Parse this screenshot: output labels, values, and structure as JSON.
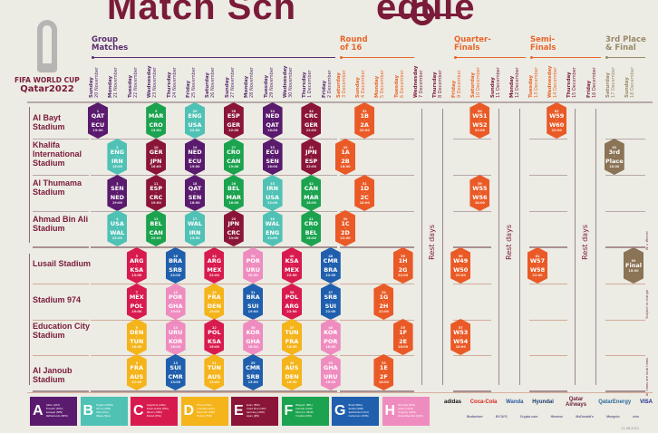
{
  "title_part1": "Match Sch",
  "title_part2": "edule",
  "logo": {
    "line1": "FIFA WORLD CUP",
    "line2": "Qatar2022"
  },
  "stages": [
    {
      "label1": "Group",
      "label2": "Matches",
      "color": "#5a2d6e"
    },
    {
      "label1": "Round",
      "label2": "of 16",
      "color": "#e8662a"
    },
    {
      "label1": "Quarter-",
      "label2": "Finals",
      "color": "#e8662a"
    },
    {
      "label1": "Semi-",
      "label2": "Finals",
      "color": "#e8662a"
    },
    {
      "label1": "3rd Place",
      "label2": "& Final",
      "color": "#9a8a6a"
    }
  ],
  "dates": [
    {
      "weekday": "Sunday",
      "date": "20 November",
      "color": "#5a2d6e"
    },
    {
      "weekday": "Monday",
      "date": "21 November",
      "color": "#5a2d6e"
    },
    {
      "weekday": "Tuesday",
      "date": "22 November",
      "color": "#5a2d6e"
    },
    {
      "weekday": "Wednesday",
      "date": "23 November",
      "color": "#5a2d6e"
    },
    {
      "weekday": "Thursday",
      "date": "24 November",
      "color": "#5a2d6e"
    },
    {
      "weekday": "Friday",
      "date": "25 November",
      "color": "#5a2d6e"
    },
    {
      "weekday": "Saturday",
      "date": "26 November",
      "color": "#5a2d6e"
    },
    {
      "weekday": "Sunday",
      "date": "27 November",
      "color": "#5a2d6e"
    },
    {
      "weekday": "Monday",
      "date": "28 November",
      "color": "#5a2d6e"
    },
    {
      "weekday": "Tuesday",
      "date": "29 November",
      "color": "#5a2d6e"
    },
    {
      "weekday": "Wednesday",
      "date": "30 November",
      "color": "#5a2d6e"
    },
    {
      "weekday": "Thursday",
      "date": "1 December",
      "color": "#5a2d6e"
    },
    {
      "weekday": "Friday",
      "date": "2 December",
      "color": "#5a2d6e"
    },
    {
      "weekday": "Saturday",
      "date": "3 December",
      "color": "#e8662a"
    },
    {
      "weekday": "Sunday",
      "date": "4 December",
      "color": "#e8662a"
    },
    {
      "weekday": "Monday",
      "date": "5 December",
      "color": "#e8662a"
    },
    {
      "weekday": "Tuesday",
      "date": "6 December",
      "color": "#e8662a"
    },
    {
      "weekday": "Wednesday",
      "date": "7 December",
      "color": "#7a1b3a"
    },
    {
      "weekday": "Thursday",
      "date": "8 December",
      "color": "#7a1b3a"
    },
    {
      "weekday": "Friday",
      "date": "9 December",
      "color": "#e8662a"
    },
    {
      "weekday": "Saturday",
      "date": "10 December",
      "color": "#e8662a"
    },
    {
      "weekday": "Sunday",
      "date": "11 December",
      "color": "#7a1b3a"
    },
    {
      "weekday": "Monday",
      "date": "12 December",
      "color": "#7a1b3a"
    },
    {
      "weekday": "Tuesday",
      "date": "13 December",
      "color": "#e8662a"
    },
    {
      "weekday": "Wednesday",
      "date": "14 December",
      "color": "#e8662a"
    },
    {
      "weekday": "Thursday",
      "date": "15 December",
      "color": "#7a1b3a"
    },
    {
      "weekday": "Friday",
      "date": "16 December",
      "color": "#7a1b3a"
    },
    {
      "weekday": "Saturday",
      "date": "17 December",
      "color": "#9a8a6a"
    },
    {
      "weekday": "Sunday",
      "date": "18 December",
      "color": "#9a8a6a"
    }
  ],
  "stadiums": [
    {
      "name": "Al Bayt Stadium"
    },
    {
      "name": "Khalifa International Stadium"
    },
    {
      "name": "Al Thumama Stadium"
    },
    {
      "name": "Ahmad Bin Ali Stadium"
    },
    {
      "name": "Lusail Stadium"
    },
    {
      "name": "Stadium 974"
    },
    {
      "name": "Education City Stadium"
    },
    {
      "name": "Al Janoub Stadium"
    }
  ],
  "rest_days_label": "Rest days",
  "group_colors": {
    "A": "#5a1a6e",
    "B": "#4fc2b5",
    "C": "#d81b4f",
    "D": "#f4b41a",
    "E": "#8a1538",
    "F": "#1ba34f",
    "G": "#1f5fae",
    "H": "#ef8cbf",
    "KO": "#ea5a26",
    "FIN": "#8b7355"
  },
  "matches": [
    {
      "num": "1",
      "stadium": 0,
      "day": 0,
      "home": "QAT",
      "away": "ECU",
      "time": "19:00",
      "group": "A"
    },
    {
      "num": "9",
      "stadium": 0,
      "day": 3,
      "home": "MAR",
      "away": "CRO",
      "time": "13:00",
      "group": "F"
    },
    {
      "num": "20",
      "stadium": 0,
      "day": 5,
      "home": "ENG",
      "away": "USA",
      "time": "22:00",
      "group": "B"
    },
    {
      "num": "28",
      "stadium": 0,
      "day": 7,
      "home": "ESP",
      "away": "GER",
      "time": "22:00",
      "group": "E"
    },
    {
      "num": "34",
      "stadium": 0,
      "day": 9,
      "home": "NED",
      "away": "QAT",
      "time": "18:00",
      "group": "A"
    },
    {
      "num": "44",
      "stadium": 0,
      "day": 11,
      "home": "CRC",
      "away": "GER",
      "time": "22:00",
      "group": "E"
    },
    {
      "num": "52",
      "stadium": 0,
      "day": 14,
      "home": "1B",
      "away": "2A",
      "time": "22:00",
      "group": "KO"
    },
    {
      "num": "60",
      "stadium": 0,
      "day": 20,
      "home": "W51",
      "away": "W52",
      "time": "22:00",
      "group": "KO"
    },
    {
      "num": "62",
      "stadium": 0,
      "day": 24,
      "home": "W59",
      "away": "W60",
      "time": "22:00",
      "group": "KO"
    },
    {
      "num": "2",
      "stadium": 1,
      "day": 1,
      "home": "ENG",
      "away": "IRN",
      "time": "16:00",
      "group": "B"
    },
    {
      "num": "10",
      "stadium": 1,
      "day": 3,
      "home": "GER",
      "away": "JPN",
      "time": "16:00",
      "group": "E"
    },
    {
      "num": "19",
      "stadium": 1,
      "day": 5,
      "home": "NED",
      "away": "ECU",
      "time": "19:00",
      "group": "A"
    },
    {
      "num": "27",
      "stadium": 1,
      "day": 7,
      "home": "CRO",
      "away": "CAN",
      "time": "19:00",
      "group": "F"
    },
    {
      "num": "33",
      "stadium": 1,
      "day": 9,
      "home": "ECU",
      "away": "SEN",
      "time": "18:00",
      "group": "A"
    },
    {
      "num": "43",
      "stadium": 1,
      "day": 11,
      "home": "JPN",
      "away": "ESP",
      "time": "22:00",
      "group": "E"
    },
    {
      "num": "49",
      "stadium": 1,
      "day": 13,
      "home": "1A",
      "away": "2B",
      "time": "18:00",
      "group": "KO"
    },
    {
      "num": "63",
      "stadium": 1,
      "day": 27,
      "home": "3rd",
      "away": "Place",
      "time": "18:00",
      "group": "FIN"
    },
    {
      "num": "3",
      "stadium": 2,
      "day": 1,
      "home": "SEN",
      "away": "NED",
      "time": "19:00",
      "group": "A"
    },
    {
      "num": "11",
      "stadium": 2,
      "day": 3,
      "home": "ESP",
      "away": "CRC",
      "time": "19:00",
      "group": "E"
    },
    {
      "num": "18",
      "stadium": 2,
      "day": 5,
      "home": "QAT",
      "away": "SEN",
      "time": "16:00",
      "group": "A"
    },
    {
      "num": "26",
      "stadium": 2,
      "day": 7,
      "home": "BEL",
      "away": "MAR",
      "time": "16:00",
      "group": "F"
    },
    {
      "num": "35",
      "stadium": 2,
      "day": 9,
      "home": "IRN",
      "away": "USA",
      "time": "22:00",
      "group": "B"
    },
    {
      "num": "42",
      "stadium": 2,
      "day": 11,
      "home": "CAN",
      "away": "MAR",
      "time": "18:00",
      "group": "F"
    },
    {
      "num": "51",
      "stadium": 2,
      "day": 14,
      "home": "1D",
      "away": "2C",
      "time": "18:00",
      "group": "KO"
    },
    {
      "num": "59",
      "stadium": 2,
      "day": 20,
      "home": "W55",
      "away": "W56",
      "time": "18:00",
      "group": "KO"
    },
    {
      "num": "4",
      "stadium": 3,
      "day": 1,
      "home": "USA",
      "away": "WAL",
      "time": "22:00",
      "group": "B"
    },
    {
      "num": "12",
      "stadium": 3,
      "day": 3,
      "home": "BEL",
      "away": "CAN",
      "time": "22:00",
      "group": "F"
    },
    {
      "num": "17",
      "stadium": 3,
      "day": 5,
      "home": "WAL",
      "away": "IRN",
      "time": "13:00",
      "group": "B"
    },
    {
      "num": "25",
      "stadium": 3,
      "day": 7,
      "home": "JPN",
      "away": "CRC",
      "time": "13:00",
      "group": "E"
    },
    {
      "num": "36",
      "stadium": 3,
      "day": 9,
      "home": "WAL",
      "away": "ENG",
      "time": "22:00",
      "group": "B"
    },
    {
      "num": "41",
      "stadium": 3,
      "day": 11,
      "home": "CRO",
      "away": "BEL",
      "time": "18:00",
      "group": "F"
    },
    {
      "num": "50",
      "stadium": 3,
      "day": 13,
      "home": "1C",
      "away": "2D",
      "time": "22:00",
      "group": "KO"
    },
    {
      "num": "5",
      "stadium": 4,
      "day": 2,
      "home": "ARG",
      "away": "KSA",
      "time": "13:00",
      "group": "C"
    },
    {
      "num": "16",
      "stadium": 4,
      "day": 4,
      "home": "BRA",
      "away": "SRB",
      "time": "22:00",
      "group": "G"
    },
    {
      "num": "24",
      "stadium": 4,
      "day": 6,
      "home": "ARG",
      "away": "MEX",
      "time": "22:00",
      "group": "C"
    },
    {
      "num": "32",
      "stadium": 4,
      "day": 8,
      "home": "POR",
      "away": "URU",
      "time": "22:00",
      "group": "H"
    },
    {
      "num": "40",
      "stadium": 4,
      "day": 10,
      "home": "KSA",
      "away": "MEX",
      "time": "22:00",
      "group": "C"
    },
    {
      "num": "48",
      "stadium": 4,
      "day": 12,
      "home": "CMR",
      "away": "BRA",
      "time": "22:00",
      "group": "G"
    },
    {
      "num": "56",
      "stadium": 4,
      "day": 16,
      "home": "1H",
      "away": "2G",
      "time": "22:00",
      "group": "KO"
    },
    {
      "num": "58",
      "stadium": 4,
      "day": 19,
      "home": "W49",
      "away": "W50",
      "time": "22:00",
      "group": "KO"
    },
    {
      "num": "61",
      "stadium": 4,
      "day": 23,
      "home": "W57",
      "away": "W58",
      "time": "22:00",
      "group": "KO"
    },
    {
      "num": "64",
      "stadium": 4,
      "day": 28,
      "home": "Final",
      "away": "",
      "time": "18:00",
      "group": "FIN"
    },
    {
      "num": "7",
      "stadium": 5,
      "day": 2,
      "home": "MEX",
      "away": "POL",
      "time": "19:00",
      "group": "C"
    },
    {
      "num": "15",
      "stadium": 5,
      "day": 4,
      "home": "POR",
      "away": "GHA",
      "time": "19:00",
      "group": "H"
    },
    {
      "num": "23",
      "stadium": 5,
      "day": 6,
      "home": "FRA",
      "away": "DEN",
      "time": "19:00",
      "group": "D"
    },
    {
      "num": "31",
      "stadium": 5,
      "day": 8,
      "home": "BRA",
      "away": "SUI",
      "time": "19:00",
      "group": "G"
    },
    {
      "num": "39",
      "stadium": 5,
      "day": 10,
      "home": "POL",
      "away": "ARG",
      "time": "22:00",
      "group": "C"
    },
    {
      "num": "47",
      "stadium": 5,
      "day": 12,
      "home": "SRB",
      "away": "SUI",
      "time": "22:00",
      "group": "G"
    },
    {
      "num": "54",
      "stadium": 5,
      "day": 15,
      "home": "1G",
      "away": "2H",
      "time": "22:00",
      "group": "KO"
    },
    {
      "num": "6",
      "stadium": 6,
      "day": 2,
      "home": "DEN",
      "away": "TUN",
      "time": "16:00",
      "group": "D"
    },
    {
      "num": "14",
      "stadium": 6,
      "day": 4,
      "home": "URU",
      "away": "KOR",
      "time": "16:00",
      "group": "H"
    },
    {
      "num": "22",
      "stadium": 6,
      "day": 6,
      "home": "POL",
      "away": "KSA",
      "time": "16:00",
      "group": "C"
    },
    {
      "num": "30",
      "stadium": 6,
      "day": 8,
      "home": "KOR",
      "away": "GHA",
      "time": "16:00",
      "group": "H"
    },
    {
      "num": "37",
      "stadium": 6,
      "day": 10,
      "home": "TUN",
      "away": "FRA",
      "time": "18:00",
      "group": "D"
    },
    {
      "num": "46",
      "stadium": 6,
      "day": 12,
      "home": "KOR",
      "away": "POR",
      "time": "18:00",
      "group": "H"
    },
    {
      "num": "55",
      "stadium": 6,
      "day": 16,
      "home": "1F",
      "away": "2E",
      "time": "18:00",
      "group": "KO"
    },
    {
      "num": "57",
      "stadium": 6,
      "day": 19,
      "home": "W53",
      "away": "W54",
      "time": "18:00",
      "group": "KO"
    },
    {
      "num": "8",
      "stadium": 7,
      "day": 2,
      "home": "FRA",
      "away": "AUS",
      "time": "22:00",
      "group": "D"
    },
    {
      "num": "13",
      "stadium": 7,
      "day": 4,
      "home": "SUI",
      "away": "CMR",
      "time": "13:00",
      "group": "G"
    },
    {
      "num": "21",
      "stadium": 7,
      "day": 6,
      "home": "TUN",
      "away": "AUS",
      "time": "13:00",
      "group": "D"
    },
    {
      "num": "29",
      "stadium": 7,
      "day": 8,
      "home": "CMR",
      "away": "SRB",
      "time": "13:00",
      "group": "G"
    },
    {
      "num": "38",
      "stadium": 7,
      "day": 10,
      "home": "AUS",
      "away": "DEN",
      "time": "18:00",
      "group": "D"
    },
    {
      "num": "45",
      "stadium": 7,
      "day": 12,
      "home": "GHA",
      "away": "URU",
      "time": "18:00",
      "group": "H"
    },
    {
      "num": "53",
      "stadium": 7,
      "day": 15,
      "home": "1E",
      "away": "2F",
      "time": "18:00",
      "group": "KO"
    }
  ],
  "groups": [
    {
      "letter": "A",
      "teams": [
        "Qatar (QAT)",
        "Ecuador (ECU)",
        "Senegal (SEN)",
        "Netherlands (NED)"
      ]
    },
    {
      "letter": "B",
      "teams": [
        "England (ENG)",
        "IR Iran (IRN)",
        "USA (USA)",
        "Wales (WAL)"
      ]
    },
    {
      "letter": "C",
      "teams": [
        "Argentina (ARG)",
        "Saudi Arabia (KSA)",
        "Mexico (MEX)",
        "Poland (POL)"
      ]
    },
    {
      "letter": "D",
      "teams": [
        "France (FRA)",
        "Australia (AUS)",
        "Denmark (DEN)",
        "Tunisia (TUN)"
      ]
    },
    {
      "letter": "E",
      "teams": [
        "Spain (ESP)",
        "Costa Rica (CRC)",
        "Germany (GER)",
        "Japan (JPN)"
      ]
    },
    {
      "letter": "F",
      "teams": [
        "Belgium (BEL)",
        "Canada (CAN)",
        "Morocco (MAR)",
        "Croatia (CRO)"
      ]
    },
    {
      "letter": "G",
      "teams": [
        "Brazil (BRA)",
        "Serbia (SRB)",
        "Switzerland (SUI)",
        "Cameroon (CMR)"
      ]
    },
    {
      "letter": "H",
      "teams": [
        "Portugal (POR)",
        "Ghana (GHA)",
        "Uruguay (URU)",
        "Korea Republic (KOR)"
      ]
    }
  ],
  "notes": [
    "W = Winner",
    "Subject to change",
    "All times are local times"
  ],
  "sponsors_row1": [
    "adidas",
    "Coca-Cola",
    "Wanda",
    "Hyundai",
    "Qatar Airways",
    "QatarEnergy",
    "VISA"
  ],
  "sponsors_row2": [
    "Budweiser",
    "BYJU'S",
    "Crypto.com",
    "Hisense",
    "McDonald's",
    "Mengniu",
    "vivo"
  ],
  "version_date": "11.08.2022"
}
